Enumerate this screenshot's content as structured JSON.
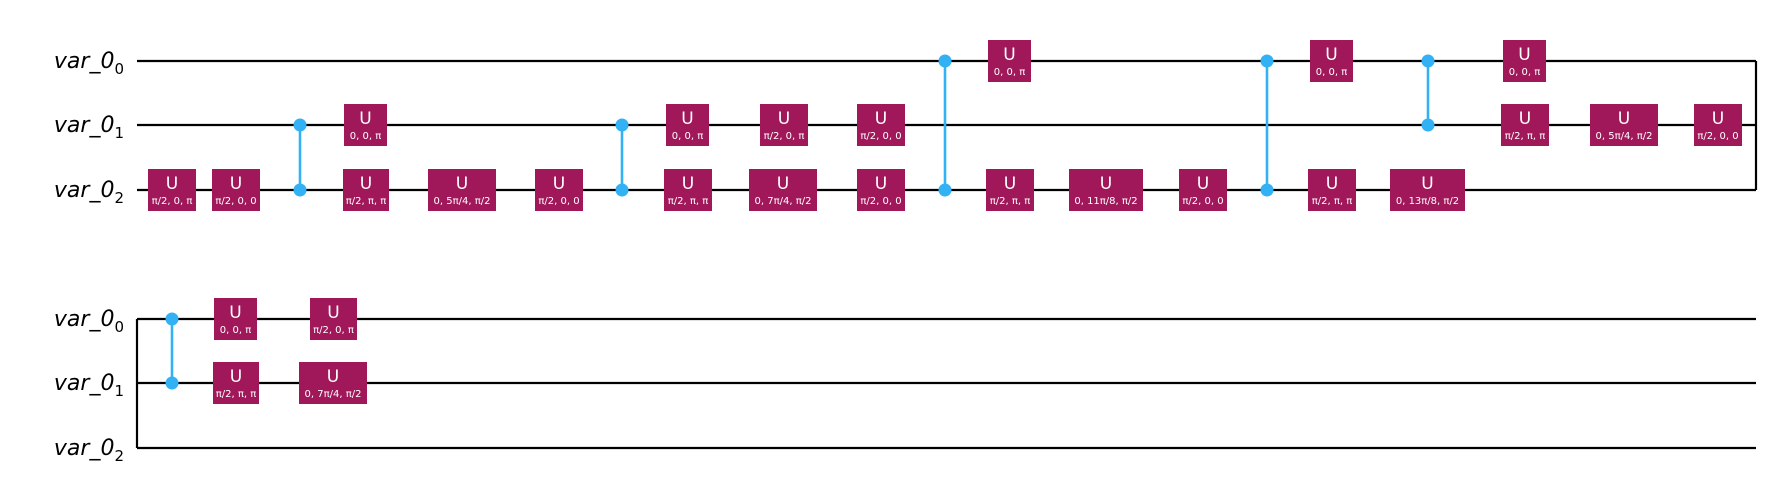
{
  "colors": {
    "gate_fill": "#A0185A",
    "gate_text": "#FFFFFF",
    "control": "#33B1F5",
    "wire": "#000000",
    "label": "#000000"
  },
  "rows": [
    {
      "qubits": [
        {
          "label": "var_0",
          "sub": "0"
        },
        {
          "label": "var_0",
          "sub": "1"
        },
        {
          "label": "var_0",
          "sub": "2"
        }
      ],
      "barrier_on_right": true,
      "gates": [
        {
          "qubit": 2,
          "name": "U",
          "params": "π/2, 0, π"
        },
        {
          "qubit": 2,
          "name": "U",
          "params": "π/2, 0, 0"
        },
        {
          "qubit": 1,
          "name": "U",
          "params": "0, 0, π"
        },
        {
          "qubit": 2,
          "name": "U",
          "params": "π/2, π, π"
        },
        {
          "qubit": 2,
          "name": "U",
          "params": "0, 5π/4, π/2"
        },
        {
          "qubit": 2,
          "name": "U",
          "params": "π/2, 0, 0"
        },
        {
          "qubit": 1,
          "name": "U",
          "params": "0, 0, π"
        },
        {
          "qubit": 2,
          "name": "U",
          "params": "π/2, π, π"
        },
        {
          "qubit": 1,
          "name": "U",
          "params": "π/2, 0, π"
        },
        {
          "qubit": 2,
          "name": "U",
          "params": "0, 7π/4, π/2"
        },
        {
          "qubit": 1,
          "name": "U",
          "params": "π/2, 0, 0"
        },
        {
          "qubit": 2,
          "name": "U",
          "params": "π/2, 0, 0"
        },
        {
          "qubit": 0,
          "name": "U",
          "params": "0, 0, π"
        },
        {
          "qubit": 2,
          "name": "U",
          "params": "π/2, π, π"
        },
        {
          "qubit": 2,
          "name": "U",
          "params": "0, 11π/8, π/2"
        },
        {
          "qubit": 2,
          "name": "U",
          "params": "π/2, 0, 0"
        },
        {
          "qubit": 0,
          "name": "U",
          "params": "0, 0, π"
        },
        {
          "qubit": 2,
          "name": "U",
          "params": "π/2, π, π"
        },
        {
          "qubit": 2,
          "name": "U",
          "params": "0, 13π/8, π/2"
        },
        {
          "qubit": 0,
          "name": "U",
          "params": "0, 0, π"
        },
        {
          "qubit": 1,
          "name": "U",
          "params": "π/2, π, π"
        },
        {
          "qubit": 1,
          "name": "U",
          "params": "0, 5π/4, π/2"
        },
        {
          "qubit": 1,
          "name": "U",
          "params": "π/2, 0, 0"
        }
      ],
      "controls": [
        {
          "qubits": [
            1,
            2
          ]
        },
        {
          "qubits": [
            1,
            2
          ]
        },
        {
          "qubits": [
            0,
            2
          ]
        },
        {
          "qubits": [
            0,
            2
          ]
        },
        {
          "qubits": [
            0,
            1
          ]
        }
      ]
    },
    {
      "qubits": [
        {
          "label": "var_0",
          "sub": "0"
        },
        {
          "label": "var_0",
          "sub": "1"
        },
        {
          "label": "var_0",
          "sub": "2"
        }
      ],
      "barrier_on_right": false,
      "gates": [
        {
          "qubit": 0,
          "name": "U",
          "params": "0, 0, π"
        },
        {
          "qubit": 1,
          "name": "U",
          "params": "π/2, π, π"
        },
        {
          "qubit": 0,
          "name": "U",
          "params": "π/2, 0, π"
        },
        {
          "qubit": 1,
          "name": "U",
          "params": "0, 7π/4, π/2"
        }
      ],
      "controls": [
        {
          "qubits": [
            0,
            1
          ]
        }
      ]
    }
  ]
}
